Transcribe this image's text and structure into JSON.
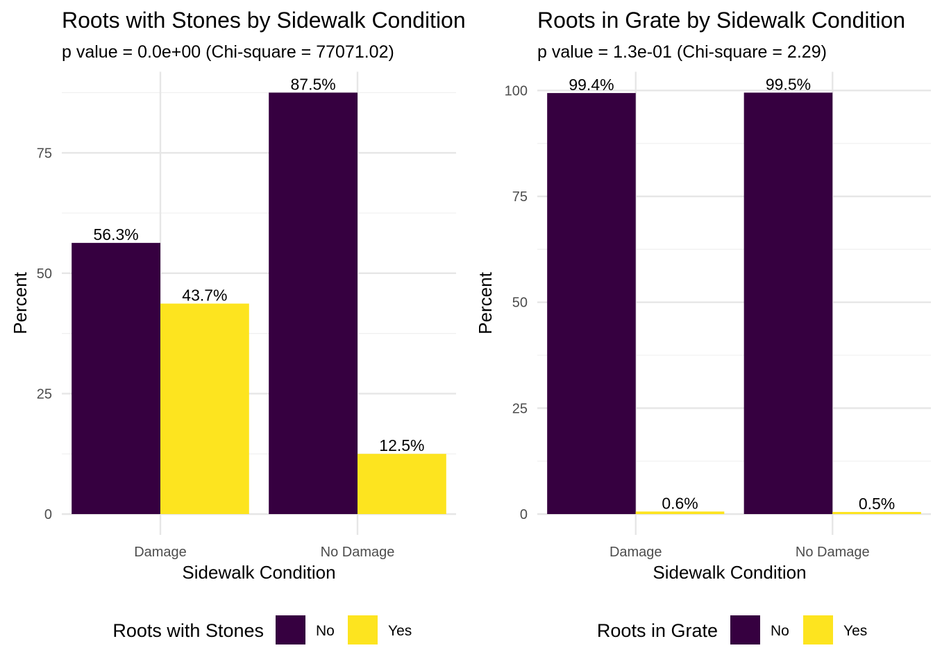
{
  "colors": {
    "no": "#360040",
    "yes": "#FDE41F",
    "grid_major": "#E6E6E6",
    "grid_minor": "#F0F0F0"
  },
  "chart_data": [
    {
      "type": "bar",
      "title": "Roots with Stones by Sidewalk Condition",
      "subtitle": "p value = 0.0e+00 (Chi-square = 77071.02)",
      "xlabel": "Sidewalk Condition",
      "ylabel": "Percent",
      "categories": [
        "Damage",
        "No Damage"
      ],
      "ylim": [
        0,
        87.5
      ],
      "yticks": [
        0,
        25,
        50,
        75
      ],
      "series": [
        {
          "name": "No",
          "values": [
            56.3,
            87.5
          ],
          "labels": [
            "56.3%",
            "87.5%"
          ]
        },
        {
          "name": "Yes",
          "values": [
            43.7,
            12.5
          ],
          "labels": [
            "43.7%",
            "12.5%"
          ]
        }
      ],
      "legend": {
        "title": "Roots with Stones",
        "entries": [
          "No",
          "Yes"
        ],
        "position": "bottom"
      }
    },
    {
      "type": "bar",
      "title": "Roots in Grate by Sidewalk Condition",
      "subtitle": "p value = 1.3e-01 (Chi-square = 2.29)",
      "xlabel": "Sidewalk Condition",
      "ylabel": "Percent",
      "categories": [
        "Damage",
        "No Damage"
      ],
      "ylim": [
        0,
        99.5
      ],
      "yticks": [
        0,
        25,
        50,
        75,
        100
      ],
      "series": [
        {
          "name": "No",
          "values": [
            99.4,
            99.5
          ],
          "labels": [
            "99.4%",
            "99.5%"
          ]
        },
        {
          "name": "Yes",
          "values": [
            0.6,
            0.5
          ],
          "labels": [
            "0.6%",
            "0.5%"
          ]
        }
      ],
      "legend": {
        "title": "Roots in Grate",
        "entries": [
          "No",
          "Yes"
        ],
        "position": "bottom"
      }
    }
  ]
}
